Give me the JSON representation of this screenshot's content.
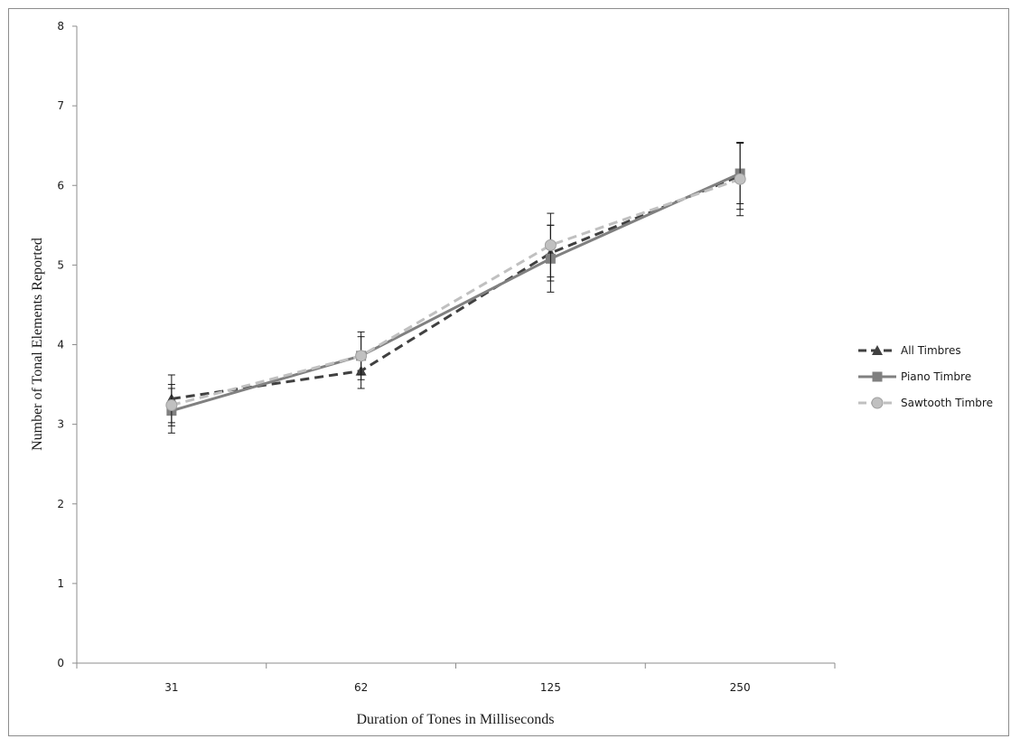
{
  "chart_data": {
    "type": "line",
    "xlabel": "Duration of Tones in Milliseconds",
    "ylabel": "Number of Tonal Elements Reported",
    "categories": [
      "31",
      "62",
      "125",
      "250"
    ],
    "ylim": [
      0,
      8
    ],
    "yticks": [
      "0",
      "1",
      "2",
      "3",
      "4",
      "5",
      "6",
      "7",
      "8"
    ],
    "grid": false,
    "legend_position": "right",
    "series": [
      {
        "name": "All Timbres",
        "values": [
          3.32,
          3.67,
          5.15,
          6.12
        ],
        "error": [
          0.3,
          0.22,
          0.35,
          0.42
        ],
        "color": "#404040",
        "dash": "dashed",
        "marker": "triangle"
      },
      {
        "name": "Piano Timbre",
        "values": [
          3.17,
          3.86,
          5.08,
          6.15
        ],
        "error": [
          0.28,
          0.3,
          0.42,
          0.38
        ],
        "color": "#808080",
        "dash": "solid",
        "marker": "square"
      },
      {
        "name": "Sawtooth Timbre",
        "values": [
          3.24,
          3.86,
          5.25,
          6.08
        ],
        "error": [
          0.26,
          0.24,
          0.4,
          0.46
        ],
        "color": "#c0c0c0",
        "dash": "dashed",
        "marker": "circle"
      }
    ]
  }
}
